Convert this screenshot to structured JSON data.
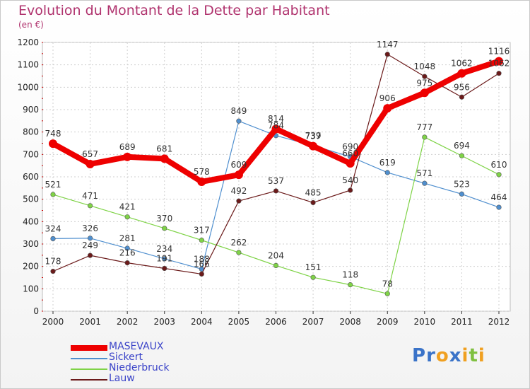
{
  "chart_data": {
    "type": "line",
    "title": "Evolution du Montant de la Dette par Habitant",
    "subtitle": "(en €)",
    "x": [
      "2000",
      "2001",
      "2002",
      "2003",
      "2004",
      "2005",
      "2006",
      "2007",
      "2008",
      "2009",
      "2010",
      "2011",
      "2012"
    ],
    "ylim": [
      0,
      1200
    ],
    "yticks": [
      0,
      100,
      200,
      300,
      400,
      500,
      600,
      700,
      800,
      900,
      1000,
      1100,
      1200
    ],
    "grid": true,
    "legend_position": "bottom-left",
    "series": [
      {
        "name": "MASEVAUX",
        "color": "#ee0000",
        "values": [
          748,
          657,
          689,
          681,
          578,
          609,
          814,
          737,
          660,
          906,
          975,
          1062,
          1116
        ],
        "labels": [
          "748",
          "657",
          "689",
          "681",
          "578",
          "609",
          "814",
          "737",
          "660",
          "906",
          "975",
          "1062",
          "1116"
        ]
      },
      {
        "name": "Sickert",
        "color": "#4f8fcf",
        "values": [
          324,
          326,
          281,
          234,
          188,
          849,
          784,
          739,
          690,
          619,
          571,
          523,
          464
        ],
        "labels": [
          "324",
          "326",
          "281",
          "234",
          "188",
          "849",
          "784",
          "739",
          "690",
          "619",
          "571",
          "523",
          "464"
        ]
      },
      {
        "name": "Niederbruck",
        "color": "#7fd347",
        "values": [
          521,
          471,
          421,
          370,
          317,
          262,
          204,
          151,
          118,
          78,
          777,
          694,
          610
        ],
        "labels": [
          "521",
          "471",
          "421",
          "370",
          "317",
          "262",
          "204",
          "151",
          "118",
          "78",
          "777",
          "694",
          "610"
        ]
      },
      {
        "name": "Lauw",
        "color": "#6b1a1a",
        "values": [
          178,
          249,
          216,
          191,
          166,
          492,
          537,
          485,
          540,
          1147,
          1048,
          956,
          1062
        ],
        "labels": [
          "178",
          "249",
          "216",
          "191",
          "166",
          "492",
          "537",
          "485",
          "540",
          "1147",
          "1048",
          "956",
          "1062"
        ]
      }
    ]
  },
  "logo": {
    "text": "Proxiti",
    "letters": [
      {
        "ch": "P",
        "color": "#3a73c8"
      },
      {
        "ch": "r",
        "color": "#3a73c8"
      },
      {
        "ch": "o",
        "color": "#f0a020"
      },
      {
        "ch": "x",
        "color": "#3a73c8"
      },
      {
        "ch": "i",
        "color": "#f0a020"
      },
      {
        "ch": "t",
        "color": "#7fc040"
      },
      {
        "ch": "i",
        "color": "#f0a020"
      }
    ]
  }
}
